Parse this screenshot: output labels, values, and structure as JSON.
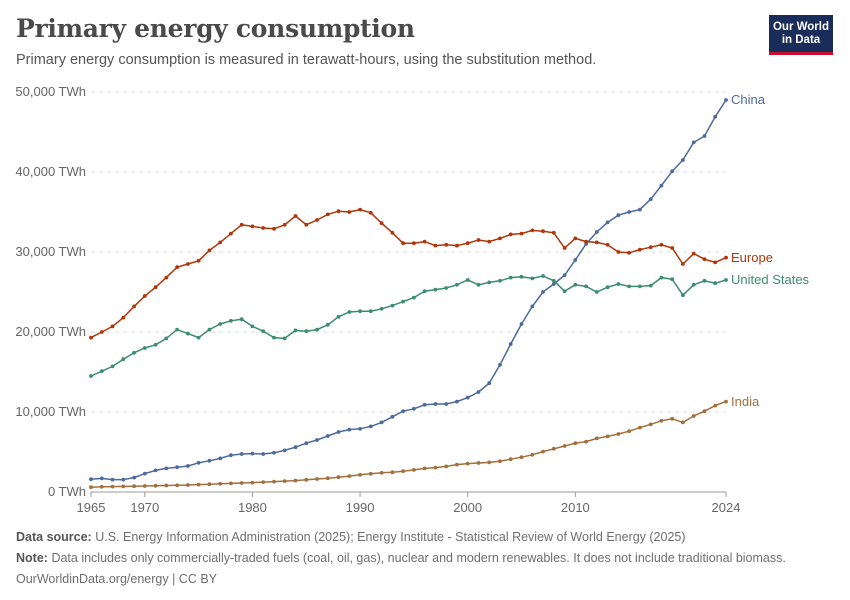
{
  "header": {
    "title": "Primary energy consumption",
    "subtitle": "Primary energy consumption is measured in terawatt-hours, using the substitution method.",
    "logo_line1": "Our World",
    "logo_line2": "in Data"
  },
  "footer": {
    "source_label": "Data source:",
    "source_text": "U.S. Energy Information Administration (2025); Energy Institute - Statistical Review of World Energy (2025)",
    "note_label": "Note:",
    "note_text": "Data includes only commercially-traded fuels (coal, oil, gas), nuclear and modern renewables. It does not include traditional biomass.",
    "credit": "OurWorldinData.org/energy | CC BY"
  },
  "chart_data": {
    "type": "line",
    "title": "Primary energy consumption",
    "ylim": [
      0,
      50000
    ],
    "xlim": [
      1965,
      2024
    ],
    "yticks": [
      0,
      10000,
      20000,
      30000,
      40000,
      50000
    ],
    "ytick_labels": [
      "0 TWh",
      "10,000 TWh",
      "20,000 TWh",
      "30,000 TWh",
      "40,000 TWh",
      "50,000 TWh"
    ],
    "xticks": [
      1965,
      1970,
      1980,
      1990,
      2000,
      2010,
      2024
    ],
    "grid": "horizontal dashed",
    "start_year": 1965,
    "series": [
      {
        "name": "China",
        "color": "#4c6a9c",
        "values": [
          1600,
          1700,
          1550,
          1550,
          1800,
          2300,
          2700,
          2950,
          3100,
          3250,
          3650,
          3900,
          4200,
          4600,
          4750,
          4800,
          4750,
          4900,
          5200,
          5600,
          6100,
          6500,
          7000,
          7500,
          7800,
          7900,
          8200,
          8700,
          9400,
          10100,
          10400,
          10900,
          11000,
          11000,
          11300,
          11800,
          12500,
          13600,
          15900,
          18500,
          21000,
          23200,
          25000,
          26000,
          27100,
          29000,
          31000,
          32500,
          33700,
          34600,
          35000,
          35300,
          36600,
          38300,
          40100,
          41500,
          43700,
          44500,
          46900,
          49000
        ]
      },
      {
        "name": "Europe",
        "color": "#b13507",
        "values": [
          19300,
          20000,
          20700,
          21800,
          23200,
          24500,
          25600,
          26800,
          28100,
          28500,
          28900,
          30200,
          31200,
          32300,
          33400,
          33200,
          33000,
          32900,
          33400,
          34500,
          33400,
          34000,
          34700,
          35100,
          35000,
          35300,
          34900,
          33600,
          32400,
          31100,
          31100,
          31300,
          30800,
          30900,
          30800,
          31100,
          31500,
          31300,
          31700,
          32200,
          32300,
          32700,
          32600,
          32400,
          30500,
          31700,
          31300,
          31200,
          30900,
          30000,
          29900,
          30300,
          30600,
          30900,
          30500,
          28500,
          29800,
          29100,
          28700,
          29300
        ]
      },
      {
        "name": "United States",
        "color": "#3b8e6e",
        "values": [
          14500,
          15100,
          15700,
          16600,
          17400,
          18000,
          18400,
          19200,
          20300,
          19800,
          19300,
          20300,
          21000,
          21400,
          21600,
          20700,
          20100,
          19300,
          19200,
          20200,
          20100,
          20300,
          20900,
          21900,
          22500,
          22600,
          22600,
          22900,
          23300,
          23800,
          24300,
          25100,
          25300,
          25500,
          25900,
          26500,
          25900,
          26200,
          26400,
          26800,
          26900,
          26700,
          27000,
          26400,
          25100,
          25900,
          25700,
          25000,
          25600,
          26000,
          25700,
          25700,
          25800,
          26800,
          26600,
          24600,
          25900,
          26400,
          26100,
          26500
        ]
      },
      {
        "name": "India",
        "color": "#a2703c",
        "values": [
          600,
          650,
          680,
          700,
          720,
          750,
          780,
          810,
          840,
          870,
          920,
          980,
          1020,
          1080,
          1130,
          1180,
          1240,
          1300,
          1360,
          1430,
          1520,
          1620,
          1720,
          1850,
          1990,
          2150,
          2280,
          2400,
          2480,
          2600,
          2760,
          2950,
          3050,
          3200,
          3420,
          3550,
          3620,
          3700,
          3850,
          4100,
          4350,
          4650,
          5050,
          5400,
          5750,
          6100,
          6300,
          6700,
          6950,
          7250,
          7600,
          8050,
          8450,
          8900,
          9150,
          8700,
          9500,
          10100,
          10800,
          11300
        ]
      }
    ]
  }
}
